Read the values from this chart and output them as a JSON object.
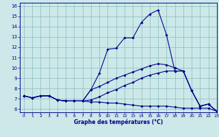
{
  "xlabel": "Graphe des températures (°C)",
  "xlim": [
    -0.5,
    23
  ],
  "ylim": [
    5.7,
    16.3
  ],
  "yticks": [
    6,
    7,
    8,
    9,
    10,
    11,
    12,
    13,
    14,
    15,
    16
  ],
  "xticks": [
    0,
    1,
    2,
    3,
    4,
    5,
    6,
    7,
    8,
    9,
    10,
    11,
    12,
    13,
    14,
    15,
    16,
    17,
    18,
    19,
    20,
    21,
    22,
    23
  ],
  "line_color": "#00008B",
  "bg_color": "#cce8e8",
  "grid_color": "#88bbbb",
  "lines": [
    {
      "x": [
        0,
        1,
        2,
        3,
        4,
        5,
        6,
        7,
        8,
        9,
        10,
        11,
        12,
        13,
        14,
        15,
        16,
        17,
        18,
        19,
        20,
        21,
        22,
        23
      ],
      "y": [
        7.3,
        7.1,
        7.3,
        7.3,
        6.9,
        6.8,
        6.8,
        6.8,
        7.9,
        9.5,
        11.8,
        11.9,
        12.9,
        12.9,
        14.4,
        15.2,
        15.6,
        13.2,
        9.7,
        9.7,
        7.8,
        6.3,
        6.5,
        5.8
      ]
    },
    {
      "x": [
        0,
        1,
        2,
        3,
        4,
        5,
        6,
        7,
        8,
        9,
        10,
        11,
        12,
        13,
        14,
        15,
        16,
        17,
        18,
        19,
        20,
        21,
        22,
        23
      ],
      "y": [
        7.3,
        7.1,
        7.3,
        7.3,
        6.9,
        6.8,
        6.8,
        6.8,
        6.7,
        6.7,
        6.6,
        6.6,
        6.5,
        6.4,
        6.3,
        6.3,
        6.3,
        6.3,
        6.2,
        6.1,
        6.1,
        6.1,
        6.1,
        5.8
      ]
    },
    {
      "x": [
        0,
        1,
        2,
        3,
        4,
        5,
        6,
        7,
        8,
        9,
        10,
        11,
        12,
        13,
        14,
        15,
        16,
        17,
        18,
        19,
        20,
        21,
        22,
        23
      ],
      "y": [
        7.3,
        7.1,
        7.3,
        7.3,
        6.9,
        6.8,
        6.8,
        6.8,
        6.9,
        7.2,
        7.6,
        7.9,
        8.3,
        8.6,
        9.0,
        9.3,
        9.5,
        9.7,
        9.7,
        9.7,
        7.8,
        6.3,
        6.5,
        5.8
      ]
    },
    {
      "x": [
        0,
        1,
        2,
        3,
        4,
        5,
        6,
        7,
        8,
        9,
        10,
        11,
        12,
        13,
        14,
        15,
        16,
        17,
        18,
        19,
        20,
        21,
        22,
        23
      ],
      "y": [
        7.3,
        7.1,
        7.3,
        7.3,
        6.9,
        6.8,
        6.8,
        6.8,
        7.9,
        8.2,
        8.6,
        9.0,
        9.3,
        9.6,
        9.9,
        10.2,
        10.4,
        10.3,
        10.0,
        9.7,
        7.8,
        6.3,
        6.5,
        5.8
      ]
    }
  ]
}
